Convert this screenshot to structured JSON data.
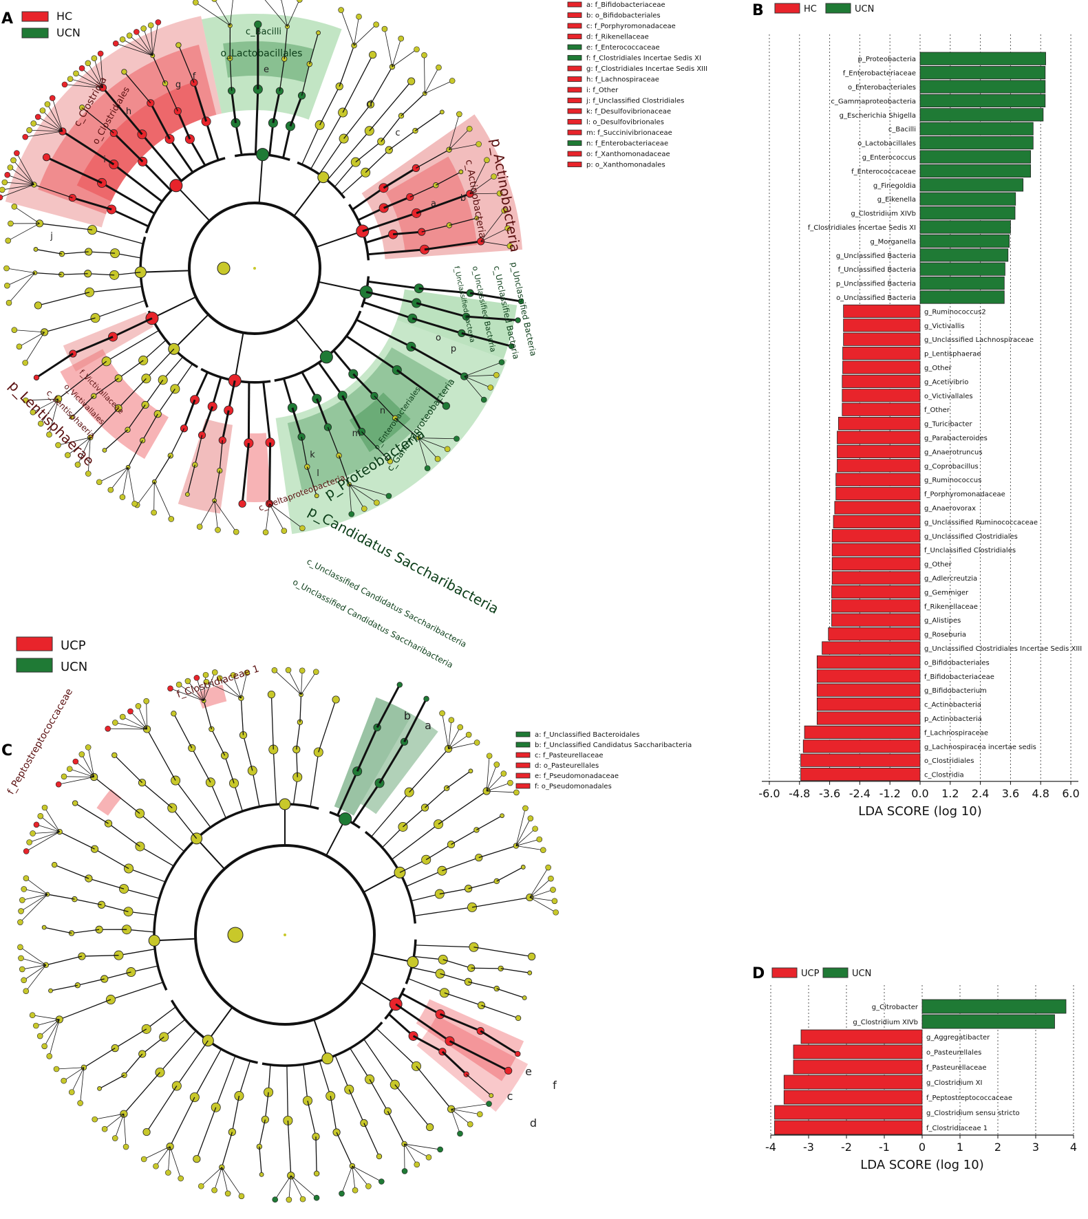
{
  "colors": {
    "red": "#e8242b",
    "green": "#1f7a35",
    "node": "#c8c82a",
    "redShade": "#e67c7c",
    "greenShade": "#8fcf94"
  },
  "panelA": {
    "letter": "A",
    "legend": [
      {
        "label": "HC",
        "color": "#e8242b"
      },
      {
        "label": "UCN",
        "color": "#1f7a35"
      }
    ],
    "labels": {
      "c_Bacilli": "c_Bacilli",
      "o_Lactobacillales": "o_Lactobacillales",
      "c_Clostridia": "c_Clostridia",
      "o_Clostridiales": "o_Clostridiales",
      "p_Actinobacteria": "p_Actinobacteria",
      "c_Actinobacteria": "c_Actinobacteria",
      "p_Proteobacteria": "p_Proteobacteria",
      "c_Gammaproteobacteria": "c_Gammaproteobacteria",
      "o_Enterobacteriales": "o_Enterobacteriales",
      "c_Deltaproteobacteria": "c_Deltaproteobacteria",
      "p_Lentisphaerae": "p_Lentisphaerae",
      "c_Lentisphaeria": "c_Lentisphaeria",
      "o_Victivallales": "o_Victivallales",
      "f_Victivallaceae": "f_Victivallaceae",
      "p_Unclassified_Bacteria": "p_Unclassified Bacteria",
      "c_Unclassified_Bacteria": "c_Unclassified Bacteria",
      "o_Unclassified_Bacteria": "o_Unclassified Bacteria",
      "f_Unclassified_Bacteria": "f_Unclassified Bacteria"
    },
    "letters": [
      "a",
      "b",
      "c",
      "d",
      "e",
      "f",
      "g",
      "h",
      "i",
      "j",
      "k",
      "l",
      "m",
      "n",
      "o",
      "p"
    ],
    "key": [
      {
        "text": "a: f_Bifidobacteriaceae",
        "color": "#e8242b"
      },
      {
        "text": "b: o_Bifidobacteriales",
        "color": "#e8242b"
      },
      {
        "text": "c: f_Porphyromonadaceae",
        "color": "#e8242b"
      },
      {
        "text": "d: f_Rikenellaceae",
        "color": "#e8242b"
      },
      {
        "text": "e: f_Enterococcaceae",
        "color": "#1f7a35"
      },
      {
        "text": "f: f_Clostridiales Incertae Sedis XI",
        "color": "#1f7a35"
      },
      {
        "text": "g: f_Clostridiales Incertae Sedis XIII",
        "color": "#e8242b"
      },
      {
        "text": "h: f_Lachnospiraceae",
        "color": "#e8242b"
      },
      {
        "text": "i: f_Other",
        "color": "#e8242b"
      },
      {
        "text": "j: f_Unclassified Clostridiales",
        "color": "#e8242b"
      },
      {
        "text": "k: f_Desulfovibrionaceae",
        "color": "#e8242b"
      },
      {
        "text": "l: o_Desulfovibrionales",
        "color": "#e8242b"
      },
      {
        "text": "m: f_Succinivibrionaceae",
        "color": "#e8242b"
      },
      {
        "text": "n: f_Enterobacteriaceae",
        "color": "#1f7a35"
      },
      {
        "text": "o: f_Xanthomonadaceae",
        "color": "#e8242b"
      },
      {
        "text": "p: o_Xanthomonadales",
        "color": "#e8242b"
      }
    ]
  },
  "panelC": {
    "letter": "C",
    "legend": [
      {
        "label": "UCP",
        "color": "#e8242b"
      },
      {
        "label": "UCN",
        "color": "#1f7a35"
      }
    ],
    "labels": {
      "p_Candidatus": "p_Candidatus  Saccharibacteria",
      "c_Unclassified": "c_Unclassified  Candidatus  Saccharibacteria",
      "o_Unclassified": "o_Unclassified  Candidatus  Saccharibacteria",
      "f_Clostridiaceae1": "f_Clostridiaceae  1",
      "f_Peptostreptococcaceae": "f_Peptostreptococcaceae"
    },
    "letters": [
      "a",
      "b",
      "c",
      "d",
      "e",
      "f"
    ],
    "key": [
      {
        "text": "a: f_Unclassified Bacteroidales",
        "color": "#1f7a35"
      },
      {
        "text": "b: f_Unclassified Candidatus Saccharibacteria",
        "color": "#1f7a35"
      },
      {
        "text": "c: f_Pasteurellaceae",
        "color": "#e8242b"
      },
      {
        "text": "d: o_Pasteurellales",
        "color": "#e8242b"
      },
      {
        "text": "e: f_Pseudomonadaceae",
        "color": "#e8242b"
      },
      {
        "text": "f: o_Pseudomonadales",
        "color": "#e8242b"
      }
    ]
  },
  "chart_data": [
    {
      "panel": "B",
      "type": "bar",
      "orientation": "horizontal",
      "legend": [
        {
          "label": "HC",
          "color": "#e8242b"
        },
        {
          "label": "UCN",
          "color": "#1f7a35"
        }
      ],
      "xlabel": "LDA SCORE (log 10)",
      "xlim": [
        -6.3,
        6.3
      ],
      "xticks": [
        "-6.0",
        "-4.8",
        "-3.6",
        "-2.4",
        "-1.2",
        "0.0",
        "1.2",
        "2.4",
        "3.6",
        "4.8",
        "6.0"
      ],
      "xtick_values": [
        -6.0,
        -4.8,
        -3.6,
        -2.4,
        -1.2,
        0.0,
        1.2,
        2.4,
        3.6,
        4.8,
        6.0
      ],
      "categories": [
        "p_Proteobacteria",
        "f_Enterobacteriaceae",
        "o_Enterobacteriales",
        "c_Gammaproteobacteria",
        "g_Escherichia  Shigella",
        "c_Bacilli",
        "o_Lactobacillales",
        "g_Enterococcus",
        "f_Enterococcaceae",
        "g_Finegoldia",
        "g_Eikenella",
        "g_Clostridium  XIVb",
        "f_Clostridiales  Incertae  Sedis  XI",
        "g_Morganella",
        "g_Unclassified  Bacteria",
        "f_Unclassified  Bacteria",
        "p_Unclassified  Bacteria",
        "o_Unclassified  Bacteria",
        "g_Ruminococcus2",
        "g_Victivallis",
        "g_Unclassified  Lachnospiraceae",
        "p_Lentisphaerae",
        "g_Other",
        "g_Acetivibrio",
        "o_Victivallales",
        "f_Other",
        "g_Turicibacter",
        "g_Parabacteroides",
        "g_Anaerotruncus",
        "g_Coprobacillus",
        "g_Ruminococcus",
        "f_Porphyromonadaceae",
        "g_Anaerovorax",
        "g_Unclassified  Ruminococcaceae",
        "g_Unclassified  Clostridiales",
        "f_Unclassified  Clostridiales",
        "g_Other",
        "g_Adlercreutzia",
        "g_Gemmiger",
        "f_Rikenellaceae",
        "g_Alistipes",
        "g_Roseburia",
        "g_Unclassified  Clostridiales  Incertae  Sedis  XIII",
        "o_Bifidobacteriales",
        "f_Bifidobacteriaceae",
        "g_Bifidobacterium",
        "c_Actinobacteria",
        "p_Actinobacteria",
        "f_Lachnospiraceae",
        "g_Lachnospiracea  incertae  sedis",
        "o_Clostridiales",
        "c_Clostridia"
      ],
      "values": [
        5.0,
        4.98,
        4.98,
        4.98,
        4.9,
        4.5,
        4.5,
        4.4,
        4.4,
        4.1,
        3.8,
        3.78,
        3.6,
        3.55,
        3.5,
        3.38,
        3.35,
        3.35,
        -3.05,
        -3.05,
        -3.05,
        -3.08,
        -3.08,
        -3.1,
        -3.1,
        -3.1,
        -3.25,
        -3.3,
        -3.3,
        -3.3,
        -3.35,
        -3.35,
        -3.4,
        -3.45,
        -3.5,
        -3.5,
        -3.5,
        -3.5,
        -3.52,
        -3.52,
        -3.52,
        -3.65,
        -3.9,
        -4.1,
        -4.1,
        -4.1,
        -4.1,
        -4.1,
        -4.6,
        -4.65,
        -4.75,
        -4.75
      ],
      "groups": [
        "UCN",
        "UCN",
        "UCN",
        "UCN",
        "UCN",
        "UCN",
        "UCN",
        "UCN",
        "UCN",
        "UCN",
        "UCN",
        "UCN",
        "UCN",
        "UCN",
        "UCN",
        "UCN",
        "UCN",
        "UCN",
        "HC",
        "HC",
        "HC",
        "HC",
        "HC",
        "HC",
        "HC",
        "HC",
        "HC",
        "HC",
        "HC",
        "HC",
        "HC",
        "HC",
        "HC",
        "HC",
        "HC",
        "HC",
        "HC",
        "HC",
        "HC",
        "HC",
        "HC",
        "HC",
        "HC",
        "HC",
        "HC",
        "HC",
        "HC",
        "HC",
        "HC",
        "HC",
        "HC",
        "HC"
      ]
    },
    {
      "panel": "D",
      "type": "bar",
      "orientation": "horizontal",
      "legend": [
        {
          "label": "UCP",
          "color": "#e8242b"
        },
        {
          "label": "UCN",
          "color": "#1f7a35"
        }
      ],
      "xlabel": "LDA SCORE (log 10)",
      "xlim": [
        -4.0,
        4.0
      ],
      "xticks": [
        "-4",
        "-3",
        "-2",
        "-1",
        "0",
        "1",
        "2",
        "3",
        "4"
      ],
      "xtick_values": [
        -4,
        -3,
        -2,
        -1,
        0,
        1,
        2,
        3,
        4
      ],
      "categories": [
        "g_Citrobacter",
        "g_Clostridium  XIVb",
        "g_Aggregatibacter",
        "o_Pasteurellales",
        "f_Pasteurellaceae",
        "g_Clostridium  XI",
        "f_Peptostreptococcaceae",
        "g_Clostridium  sensu  stricto",
        "f_Clostridiaceae  1"
      ],
      "values": [
        3.8,
        3.5,
        -3.2,
        -3.4,
        -3.4,
        -3.65,
        -3.65,
        -3.9,
        -3.9
      ],
      "groups": [
        "UCN",
        "UCN",
        "UCP",
        "UCP",
        "UCP",
        "UCP",
        "UCP",
        "UCP",
        "UCP"
      ]
    }
  ]
}
